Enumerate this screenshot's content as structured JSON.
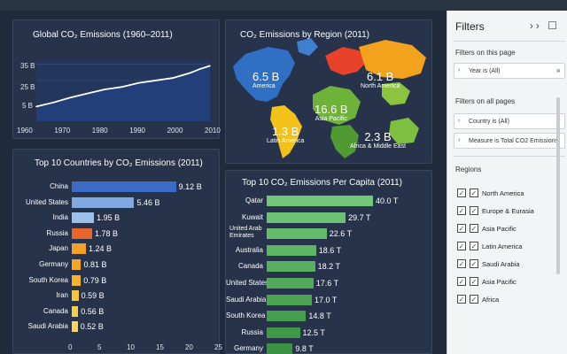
{
  "line_chart": {
    "title": "Global CO₂ Emissions (1960–2011)",
    "y_ticks": [
      "35 B",
      "25 B",
      "5 B"
    ],
    "x_ticks": [
      "1960",
      "1970",
      "1980",
      "1990",
      "2000",
      "2010"
    ],
    "color": "#ffffff",
    "fill": "#233f7a"
  },
  "map": {
    "title": "CO₂ Emissions by Region (2011)",
    "labels": [
      {
        "value": "6.5 B",
        "name": "America"
      },
      {
        "value": "6.1 B",
        "name": "North America"
      },
      {
        "value": "16.6 B",
        "name": "Asia Pacific"
      },
      {
        "value": "1.3 B",
        "name": "Latin America"
      },
      {
        "value": "2.3 B",
        "name": "Africa & Middle East"
      }
    ]
  },
  "countries": {
    "title": "Top 10 Countries by CO₂ Emissions (2011)",
    "x_ticks": [
      "0",
      "5",
      "10",
      "15",
      "20",
      "25"
    ]
  },
  "per_capita": {
    "title": "Top 10 CO₂ Emissions Per Capita (2011)"
  },
  "chart_data": [
    {
      "type": "line",
      "title": "Global CO₂ Emissions (1960–2011)",
      "x": [
        1960,
        1965,
        1970,
        1975,
        1980,
        1985,
        1990,
        1995,
        2000,
        2005,
        2008,
        2011
      ],
      "values": [
        9,
        11.5,
        14.5,
        17,
        19.5,
        21,
        23.5,
        25,
        26.5,
        29.5,
        32,
        34
      ],
      "xlim": [
        1960,
        2011
      ],
      "ylabel": ""
    },
    {
      "type": "bar",
      "title": "Top 10 Countries by CO₂ Emissions (2011)",
      "categories": [
        "China",
        "United States",
        "India",
        "Russia",
        "Japan",
        "Germany",
        "South Korea",
        "Iran",
        "Canada",
        "Saudi Arabia"
      ],
      "values": [
        9.12,
        5.46,
        1.95,
        1.78,
        1.24,
        0.81,
        0.79,
        0.59,
        0.56,
        0.52
      ],
      "value_labels": [
        "9.12 B",
        "5.46 B",
        "1.95 B",
        "1.78 B",
        "1.24 B",
        "0.81 B",
        "0.79 B",
        "0.59 B",
        "0.56 B",
        "0.52 B"
      ],
      "colors": [
        "#3b6cc5",
        "#7fa9e0",
        "#9cc0ea",
        "#e8652c",
        "#f1a12a",
        "#f4a624",
        "#f6b42a",
        "#f7c43a",
        "#f8cf45",
        "#f9d750"
      ],
      "xlim": [
        0,
        25
      ]
    },
    {
      "type": "bar",
      "title": "Top 10 CO₂ Emissions Per Capita (2011)",
      "categories": [
        "Qatar",
        "Kuwait",
        "United Arab Emirates",
        "Australia",
        "Canada",
        "United States",
        "Saudi Arabia",
        "South Korea",
        "Russia",
        "Germany"
      ],
      "values": [
        40.0,
        29.7,
        22.6,
        18.6,
        18.2,
        17.6,
        17.0,
        14.8,
        12.5,
        9.8
      ],
      "value_labels": [
        "40.0 T",
        "29.7 T",
        "22.6 T",
        "18.6 T",
        "18.2 T",
        "17.6 T",
        "17.0 T",
        "14.8 T",
        "12.5 T",
        "9.8 T"
      ],
      "colors": [
        "#73c77a",
        "#6cc173",
        "#65bb6c",
        "#5fb566",
        "#58af60",
        "#52a95a",
        "#4ca354",
        "#469d4e",
        "#3f9748",
        "#3a9142"
      ],
      "xlim": [
        0,
        40
      ]
    }
  ],
  "filters": {
    "title": "Filters",
    "on_this_page": "Filters on this page",
    "year_filter": "Year is (All)",
    "on_all_pages": "Filters on all pages",
    "country_filter": "Country is (All)",
    "measure_filter": "Measure is  Total CO2 Emissions",
    "regions_title": "Regions",
    "regions": [
      "North America",
      "Europe & Eurasia",
      "Asia Pacific",
      "Latin America",
      "Saudi Arabia",
      "Asia Pacific",
      "Africa"
    ]
  }
}
